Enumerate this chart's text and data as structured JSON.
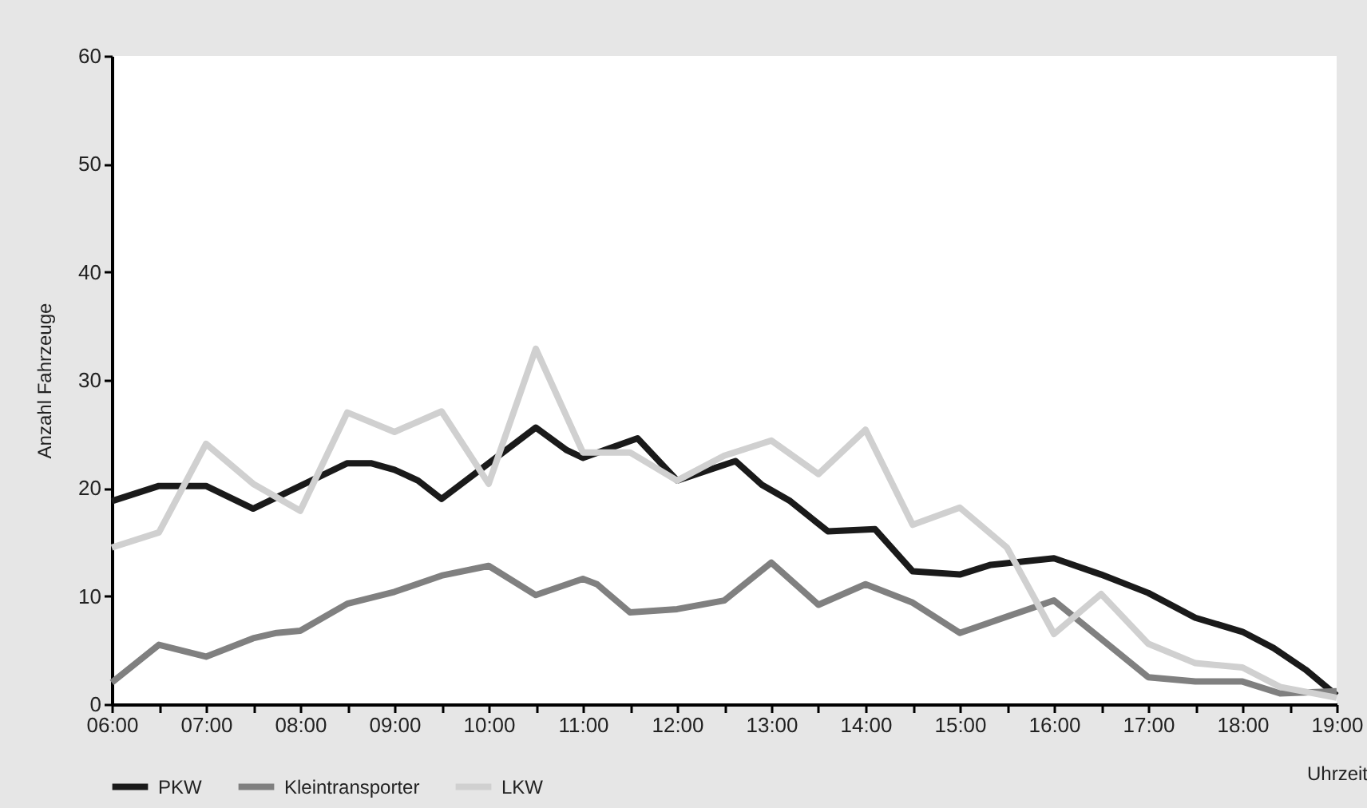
{
  "chart_data": {
    "type": "line",
    "xlabel": "Uhrzeit",
    "ylabel": "Anzahl Fahrzeuge",
    "xlim": [
      6,
      19
    ],
    "ylim": [
      0,
      60
    ],
    "yticks": [
      0,
      10,
      20,
      30,
      40,
      50,
      60
    ],
    "xticks": [
      {
        "value": 6,
        "label": "06:00"
      },
      {
        "value": 6.5,
        "label": null
      },
      {
        "value": 7,
        "label": "07:00"
      },
      {
        "value": 7.5,
        "label": null
      },
      {
        "value": 8,
        "label": "08:00"
      },
      {
        "value": 8.5,
        "label": null
      },
      {
        "value": 9,
        "label": "09:00"
      },
      {
        "value": 9.5,
        "label": null
      },
      {
        "value": 10,
        "label": "10:00"
      },
      {
        "value": 10.5,
        "label": null
      },
      {
        "value": 11,
        "label": "11:00"
      },
      {
        "value": 11.5,
        "label": null
      },
      {
        "value": 12,
        "label": "12:00"
      },
      {
        "value": 12.5,
        "label": null
      },
      {
        "value": 13,
        "label": "13:00"
      },
      {
        "value": 13.5,
        "label": null
      },
      {
        "value": 14,
        "label": "14:00"
      },
      {
        "value": 14.5,
        "label": null
      },
      {
        "value": 15,
        "label": "15:00"
      },
      {
        "value": 15.5,
        "label": null
      },
      {
        "value": 16,
        "label": "16:00"
      },
      {
        "value": 16.5,
        "label": null
      },
      {
        "value": 17,
        "label": "17:00"
      },
      {
        "value": 17.5,
        "label": null
      },
      {
        "value": 18,
        "label": "18:00"
      },
      {
        "value": 18.5,
        "label": null
      },
      {
        "value": 19,
        "label": "19:00"
      }
    ],
    "grid": false,
    "legend": "bottom",
    "marker": "none",
    "line_style": "solid",
    "series": [
      {
        "name": "PKW",
        "color": "#1a1a1a",
        "x": [
          6,
          6.5,
          7,
          7.5,
          8,
          8.5,
          8.75,
          9,
          9.25,
          9.5,
          10,
          10.5,
          10.83,
          11,
          11.58,
          12,
          12.62,
          12.9,
          13.2,
          13.6,
          14.1,
          14.5,
          15,
          15.33,
          16,
          16.5,
          17,
          17.5,
          18,
          18.33,
          18.67,
          19
        ],
        "values": [
          18.8,
          20.2,
          20.2,
          18.1,
          20.2,
          22.3,
          22.3,
          21.7,
          20.7,
          19.0,
          22.3,
          25.6,
          23.5,
          22.8,
          24.6,
          20.7,
          22.5,
          20.3,
          18.8,
          16.0,
          16.2,
          12.3,
          12.0,
          12.9,
          13.5,
          12.0,
          10.3,
          8.0,
          6.7,
          5.2,
          3.2,
          0.8
        ]
      },
      {
        "name": "Kleintransporter",
        "color": "#808080",
        "x": [
          6,
          6.5,
          7,
          7.5,
          7.75,
          8,
          8.5,
          9,
          9.5,
          10,
          10.5,
          11,
          11.15,
          11.5,
          12,
          12.5,
          13,
          13.5,
          14,
          14.5,
          15,
          16,
          17,
          17.5,
          18,
          18.4,
          19
        ],
        "values": [
          2.0,
          5.5,
          4.4,
          6.1,
          6.6,
          6.8,
          9.3,
          10.4,
          11.9,
          12.8,
          10.1,
          11.6,
          11.1,
          8.5,
          8.8,
          9.6,
          13.1,
          9.2,
          11.1,
          9.4,
          6.6,
          9.6,
          2.5,
          2.1,
          2.1,
          1.0,
          1.2
        ]
      },
      {
        "name": "LKW",
        "color": "#d0d0d0",
        "x": [
          6,
          6.5,
          7,
          7.5,
          8,
          8.5,
          9,
          9.5,
          10,
          10.5,
          11,
          11.5,
          12,
          12.5,
          13,
          13.5,
          14,
          14.5,
          15,
          15.5,
          16,
          16.5,
          17,
          17.5,
          18,
          18.4,
          19
        ],
        "values": [
          14.5,
          15.9,
          24.1,
          20.4,
          17.9,
          27.0,
          25.2,
          27.1,
          20.4,
          32.9,
          23.3,
          23.3,
          20.7,
          23.0,
          24.4,
          21.3,
          25.4,
          16.6,
          18.2,
          14.5,
          6.5,
          10.2,
          5.6,
          3.8,
          3.4,
          1.6,
          0.6
        ]
      }
    ]
  }
}
